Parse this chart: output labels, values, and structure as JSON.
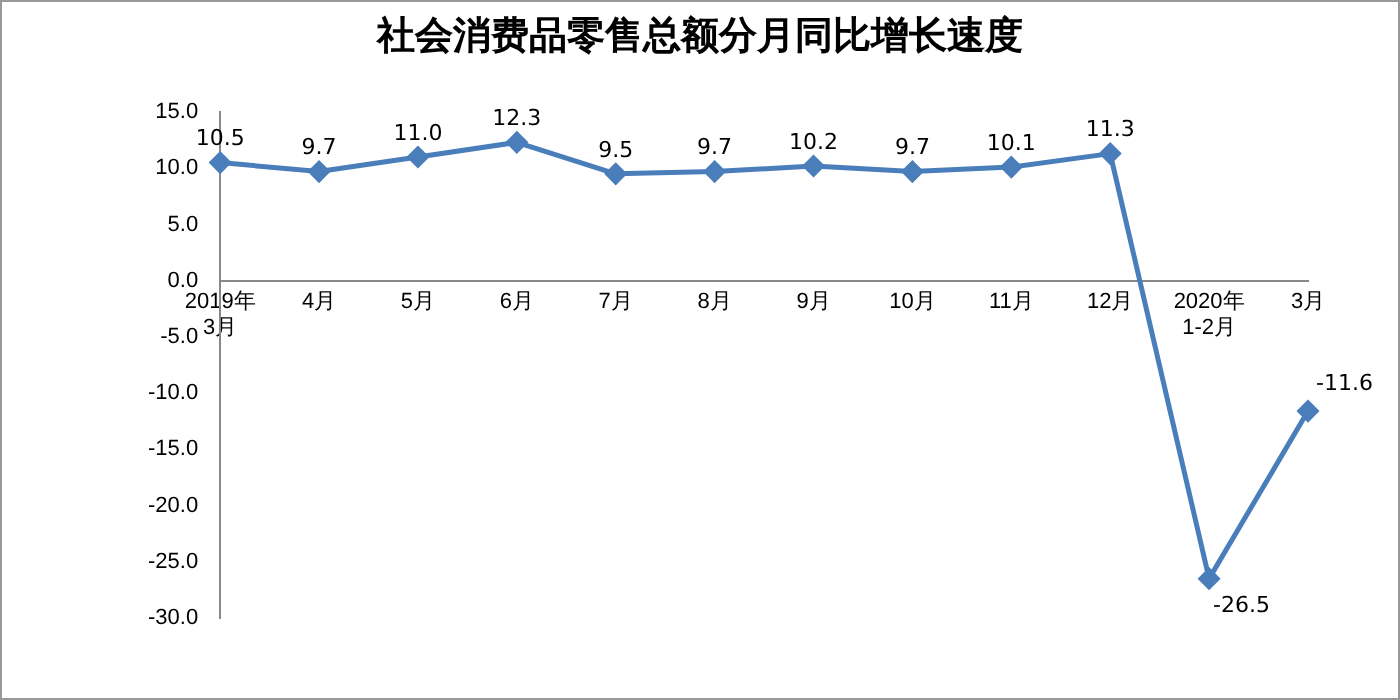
{
  "chart_data": {
    "type": "line",
    "title": "社会消费品零售总额分月同比增长速度",
    "categories": [
      "2019年\n3月",
      "4月",
      "5月",
      "6月",
      "7月",
      "8月",
      "9月",
      "10月",
      "11月",
      "12月",
      "2020年\n1-2月",
      "3月"
    ],
    "series": [
      {
        "color": "#4a7ebb",
        "values": [
          10.5,
          9.7,
          11.0,
          12.3,
          9.5,
          9.7,
          10.2,
          9.7,
          10.1,
          11.3,
          -26.5,
          -11.6
        ],
        "value_labels": [
          "10.5",
          "9.7",
          "11.0",
          "12.3",
          "9.5",
          "9.7",
          "10.2",
          "9.7",
          "10.1",
          "11.3",
          "-26.5",
          "-11.6"
        ]
      }
    ],
    "ylim": [
      -30,
      15
    ],
    "yticks": [
      {
        "value": -30,
        "label": "-30.0"
      },
      {
        "value": -25,
        "label": "-25.0"
      },
      {
        "value": -20,
        "label": "-20.0"
      },
      {
        "value": -15,
        "label": "-15.0"
      },
      {
        "value": -10,
        "label": "-10.0"
      },
      {
        "value": -5,
        "label": "-5.0"
      },
      {
        "value": 0,
        "label": "0.0"
      },
      {
        "value": 5,
        "label": "5.0"
      },
      {
        "value": 10,
        "label": "10.0"
      },
      {
        "value": 15,
        "label": "15.0"
      }
    ],
    "grid": false,
    "legend": false,
    "marker": "diamond",
    "line_style": "solid"
  }
}
